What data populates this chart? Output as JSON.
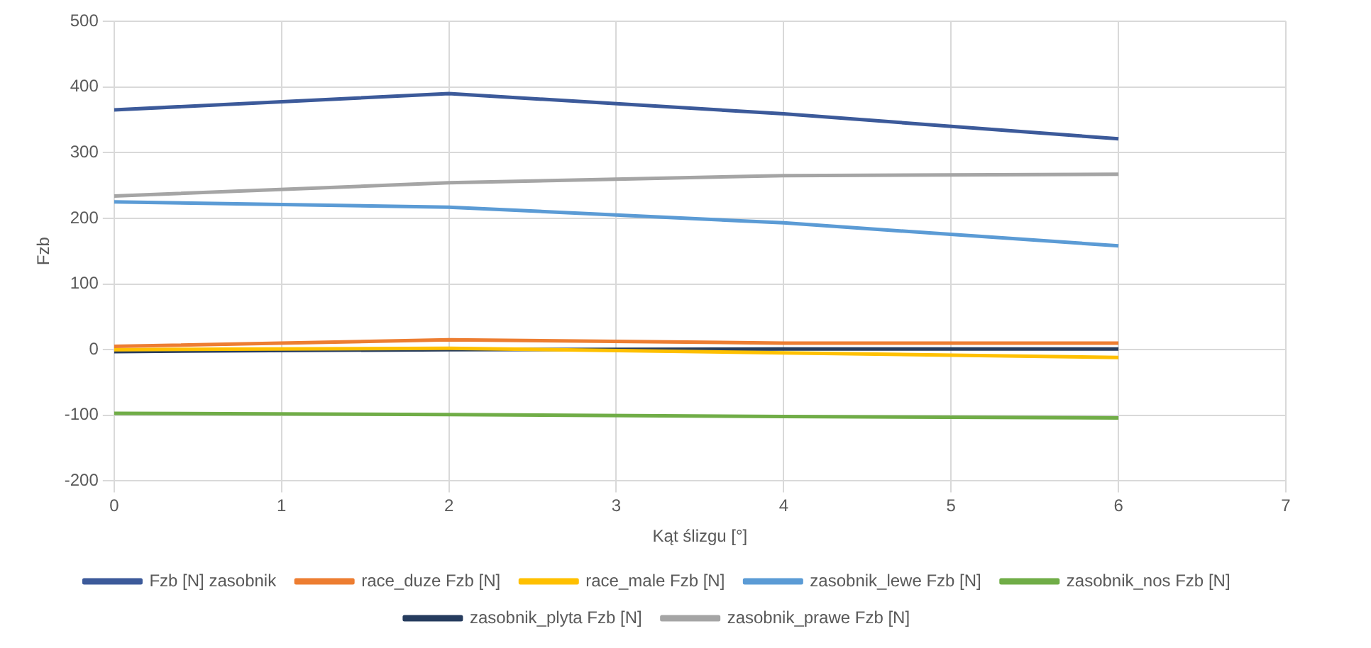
{
  "chart_data": {
    "type": "line",
    "xlabel": "Kąt ślizgu [°]",
    "ylabel": "Fzb",
    "x": [
      0,
      2,
      4,
      6
    ],
    "series": [
      {
        "name": "Fzb [N] zasobnik",
        "color": "#3c5a9a",
        "values": [
          365,
          390,
          359,
          321
        ]
      },
      {
        "name": "race_duze Fzb [N]",
        "color": "#ed7d31",
        "values": [
          5,
          15,
          10,
          10
        ]
      },
      {
        "name": "race_male Fzb [N]",
        "color": "#ffc000",
        "values": [
          0,
          2,
          -5,
          -12
        ]
      },
      {
        "name": "zasobnik_lewe Fzb [N]",
        "color": "#5b9bd5",
        "values": [
          225,
          217,
          193,
          158
        ]
      },
      {
        "name": "zasobnik_nos Fzb [N]",
        "color": "#70ad47",
        "values": [
          -97,
          -99,
          -102,
          -104
        ]
      },
      {
        "name": "zasobnik_plyta Fzb [N]",
        "color": "#263c5e",
        "values": [
          -3,
          0,
          1,
          1
        ]
      },
      {
        "name": "zasobnik_prawe Fzb [N]",
        "color": "#a5a5a5",
        "values": [
          234,
          254,
          265,
          267
        ]
      }
    ],
    "xlim": [
      0,
      7
    ],
    "xticks": [
      0,
      1,
      2,
      3,
      4,
      5,
      6,
      7
    ],
    "ylim": [
      -200,
      500
    ],
    "yticks": [
      -200,
      -100,
      0,
      100,
      200,
      300,
      400,
      500
    ],
    "grid": true,
    "legend": "bottom",
    "marker": "none",
    "line_style": "solid"
  }
}
